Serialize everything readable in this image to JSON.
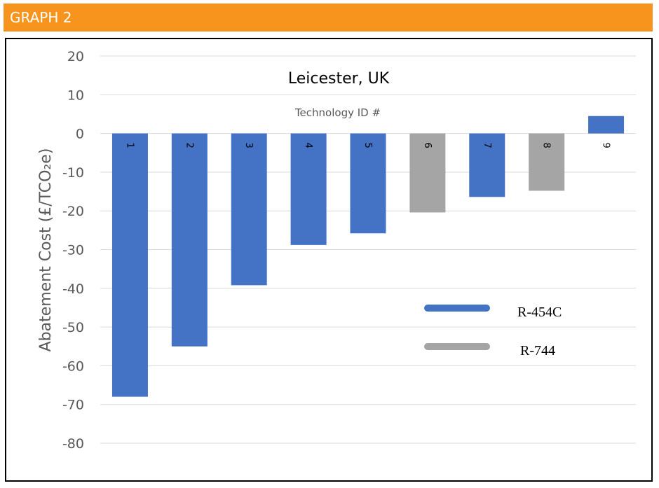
{
  "banner": {
    "title": "GRAPH 2"
  },
  "colors": {
    "banner": "#F7941D",
    "R-454C": "#4472C4",
    "R-744": "#A5A5A5",
    "grid": "#D9D9D9"
  },
  "chart_data": {
    "type": "bar",
    "title": "Leicester, UK",
    "xlabel": "Technology ID #",
    "ylabel": "Abatement Cost (£/TCO₂e)",
    "ylim": [
      -80,
      20
    ],
    "yticks": [
      20,
      10,
      0,
      -10,
      -20,
      -30,
      -40,
      -50,
      -60,
      -70,
      -80
    ],
    "grid": true,
    "legend_position": "lower-right",
    "categories": [
      "1",
      "2",
      "3",
      "4",
      "5",
      "6",
      "7",
      "8",
      "9"
    ],
    "values": [
      -68,
      -55,
      -39.2,
      -28.8,
      -25.8,
      -20.4,
      -16.4,
      -14.8,
      4.5
    ],
    "refrigerant": [
      "R-454C",
      "R-454C",
      "R-454C",
      "R-454C",
      "R-454C",
      "R-744",
      "R-454C",
      "R-744",
      "R-454C"
    ],
    "legend": [
      "R-454C",
      "R-744"
    ]
  }
}
